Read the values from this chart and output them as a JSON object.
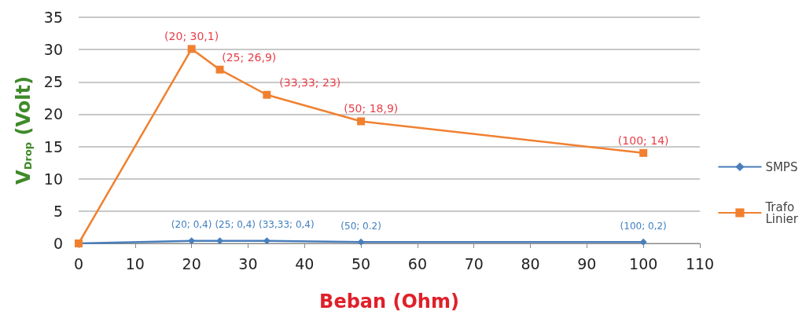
{
  "chart_data": {
    "type": "line",
    "xlabel": "Beban (Ohm)",
    "ylabel": "V$_{Drop}$ (Volt)",
    "x": [
      0,
      20,
      25,
      33.33,
      50,
      100
    ],
    "series": [
      {
        "name": "SMPS",
        "color": "#4a7ebb",
        "marker": "diamond",
        "values": [
          0,
          0.4,
          0.4,
          0.4,
          0.2,
          0.2
        ],
        "value_labels": [
          null,
          "(20; 0,4)",
          "(25; 0,4)",
          "(33,33; 0,4)",
          "(50; 0.2)",
          "(100; 0,2)"
        ]
      },
      {
        "name": "Trafo Linier",
        "color": "#f08030",
        "marker": "square",
        "values": [
          0,
          30.1,
          26.9,
          23,
          18.9,
          14
        ],
        "value_labels": [
          null,
          "(20; 30,1)",
          "(25; 26,9)",
          "(33,33; 23)",
          "(50; 18,9)",
          "(100; 14)"
        ]
      }
    ],
    "xlim": [
      0,
      110
    ],
    "xticks": [
      0,
      10,
      20,
      30,
      40,
      50,
      60,
      70,
      80,
      90,
      100,
      110
    ],
    "ylim": [
      0,
      35
    ],
    "yticks": [
      0,
      5,
      10,
      15,
      20,
      25,
      30,
      35
    ],
    "grid": "y",
    "legend": "right"
  }
}
